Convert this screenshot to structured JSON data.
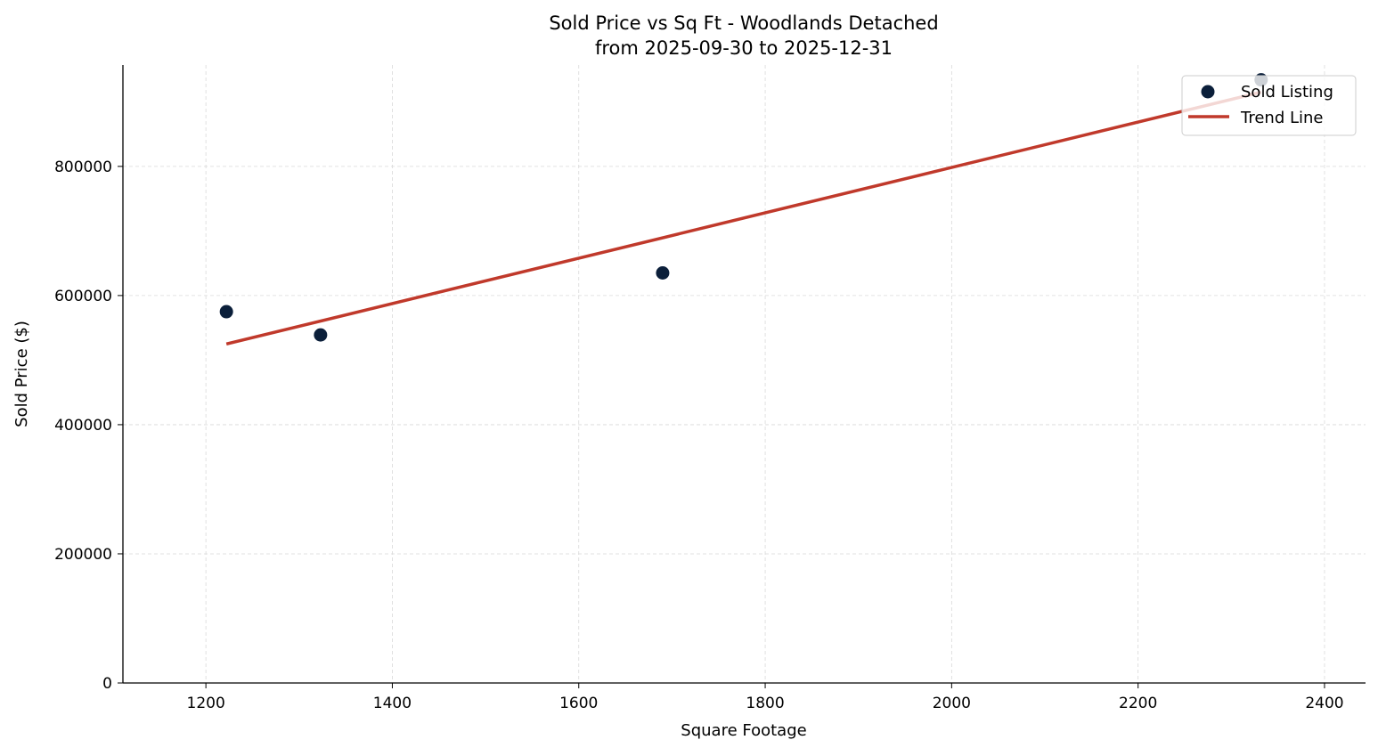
{
  "chart_data": {
    "type": "scatter",
    "title": "Sold Price vs Sq Ft - Woodlands Detached",
    "subtitle": "from 2025-09-30 to 2025-12-31",
    "xlabel": "Square Footage",
    "ylabel": "Sold Price ($)",
    "xlim": [
      1111,
      2444
    ],
    "ylim": [
      0,
      957000
    ],
    "xticks": [
      1200,
      1400,
      1600,
      1800,
      2000,
      2200,
      2400
    ],
    "yticks": [
      0,
      200000,
      400000,
      600000,
      800000
    ],
    "grid": true,
    "legend_position": "top-right",
    "series": [
      {
        "name": "Sold Listing",
        "kind": "scatter",
        "color": "#0b1f3a",
        "x": [
          1222,
          1323,
          1690,
          2332
        ],
        "y": [
          575000,
          539000,
          635000,
          934000
        ]
      },
      {
        "name": "Trend Line",
        "kind": "line",
        "color": "#c0392b",
        "x": [
          1222,
          2332
        ],
        "y": [
          525000,
          915000
        ]
      }
    ]
  }
}
